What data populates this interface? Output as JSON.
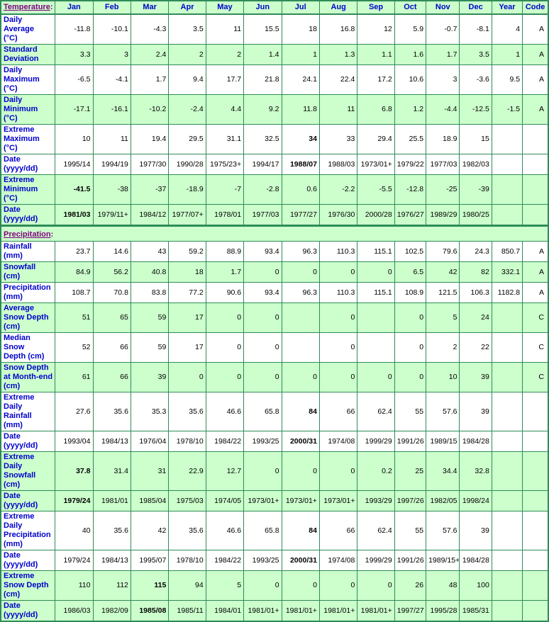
{
  "colors": {
    "cell_green": "#CCFFCC",
    "border_green": "#2E8B57",
    "label_blue": "#0000CC",
    "section_purple": "#800080",
    "value_black": "#000000"
  },
  "table": {
    "month_columns": [
      "Jan",
      "Feb",
      "Mar",
      "Apr",
      "May",
      "Jun",
      "Jul",
      "Aug",
      "Sep",
      "Oct",
      "Nov",
      "Dec"
    ],
    "extra_columns": [
      "Year",
      "Code"
    ],
    "sections": [
      {
        "title": "Temperature",
        "colon": ":",
        "rows": [
          {
            "label": "Daily Average\n(°C)",
            "green": false,
            "bold": [],
            "values": [
              "-11.8",
              "-10.1",
              "-4.3",
              "3.5",
              "11",
              "15.5",
              "18",
              "16.8",
              "12",
              "5.9",
              "-0.7",
              "-8.1"
            ],
            "year": "4",
            "code": "A"
          },
          {
            "label": "Standard\nDeviation",
            "green": true,
            "bold": [],
            "values": [
              "3.3",
              "3",
              "2.4",
              "2",
              "2",
              "1.4",
              "1",
              "1.3",
              "1.1",
              "1.6",
              "1.7",
              "3.5"
            ],
            "year": "1",
            "code": "A"
          },
          {
            "label": "Daily\nMaximum\n(°C)",
            "green": false,
            "bold": [],
            "values": [
              "-6.5",
              "-4.1",
              "1.7",
              "9.4",
              "17.7",
              "21.8",
              "24.1",
              "22.4",
              "17.2",
              "10.6",
              "3",
              "-3.6"
            ],
            "year": "9.5",
            "code": "A"
          },
          {
            "label": "Daily\nMinimum\n(°C)",
            "green": true,
            "bold": [],
            "values": [
              "-17.1",
              "-16.1",
              "-10.2",
              "-2.4",
              "4.4",
              "9.2",
              "11.8",
              "11",
              "6.8",
              "1.2",
              "-4.4",
              "-12.5"
            ],
            "year": "-1.5",
            "code": "A"
          },
          {
            "label": "Extreme\nMaximum\n(°C)",
            "green": false,
            "bold": [
              6
            ],
            "values": [
              "10",
              "11",
              "19.4",
              "29.5",
              "31.1",
              "32.5",
              "34",
              "33",
              "29.4",
              "25.5",
              "18.9",
              "15"
            ],
            "year": "",
            "code": ""
          },
          {
            "label": "Date\n(yyyy/dd)",
            "green": false,
            "bold": [
              6
            ],
            "values": [
              "1995/14",
              "1994/19",
              "1977/30",
              "1990/28",
              "1975/23+",
              "1994/17",
              "1988/07",
              "1988/03",
              "1973/01+",
              "1979/22",
              "1977/03",
              "1982/03"
            ],
            "year": "",
            "code": ""
          },
          {
            "label": "Extreme\nMinimum\n(°C)",
            "green": true,
            "bold": [
              0
            ],
            "values": [
              "-41.5",
              "-38",
              "-37",
              "-18.9",
              "-7",
              "-2.8",
              "0.6",
              "-2.2",
              "-5.5",
              "-12.8",
              "-25",
              "-39"
            ],
            "year": "",
            "code": ""
          },
          {
            "label": "Date\n(yyyy/dd)",
            "green": true,
            "bold": [
              0
            ],
            "values": [
              "1981/03",
              "1979/11+",
              "1984/12",
              "1977/07+",
              "1978/01",
              "1977/03",
              "1977/27",
              "1976/30",
              "2000/28",
              "1976/27",
              "1989/29",
              "1980/25"
            ],
            "year": "",
            "code": ""
          }
        ]
      },
      {
        "title": "Precipitation",
        "colon": ":",
        "rows": [
          {
            "label": "Rainfall (mm)",
            "green": false,
            "bold": [],
            "values": [
              "23.7",
              "14.6",
              "43",
              "59.2",
              "88.9",
              "93.4",
              "96.3",
              "110.3",
              "115.1",
              "102.5",
              "79.6",
              "24.3"
            ],
            "year": "850.7",
            "code": "A"
          },
          {
            "label": "Snowfall\n(cm)",
            "green": true,
            "bold": [],
            "values": [
              "84.9",
              "56.2",
              "40.8",
              "18",
              "1.7",
              "0",
              "0",
              "0",
              "0",
              "6.5",
              "42",
              "82"
            ],
            "year": "332.1",
            "code": "A"
          },
          {
            "label": "Precipitation\n(mm)",
            "green": false,
            "bold": [],
            "values": [
              "108.7",
              "70.8",
              "83.8",
              "77.2",
              "90.6",
              "93.4",
              "96.3",
              "110.3",
              "115.1",
              "108.9",
              "121.5",
              "106.3"
            ],
            "year": "1182.8",
            "code": "A"
          },
          {
            "label": "Average\nSnow Depth\n(cm)",
            "green": true,
            "bold": [],
            "values": [
              "51",
              "65",
              "59",
              "17",
              "0",
              "0",
              "",
              "0",
              "",
              "0",
              "5",
              "24"
            ],
            "year": "",
            "code": "C"
          },
          {
            "label": "Median Snow\nDepth (cm)",
            "green": false,
            "bold": [],
            "values": [
              "52",
              "66",
              "59",
              "17",
              "0",
              "0",
              "",
              "0",
              "",
              "0",
              "2",
              "22"
            ],
            "year": "",
            "code": "C"
          },
          {
            "label": "Snow Depth\nat Month-end\n(cm)",
            "green": true,
            "bold": [],
            "values": [
              "61",
              "66",
              "39",
              "0",
              "0",
              "0",
              "0",
              "0",
              "0",
              "0",
              "10",
              "39"
            ],
            "year": "",
            "code": "C"
          },
          {
            "label": "Extreme Daily\nRainfall (mm)",
            "green": false,
            "bold": [
              6
            ],
            "values": [
              "27.6",
              "35.6",
              "35.3",
              "35.6",
              "46.6",
              "65.8",
              "84",
              "66",
              "62.4",
              "55",
              "57.6",
              "39"
            ],
            "year": "",
            "code": ""
          },
          {
            "label": "Date\n(yyyy/dd)",
            "green": false,
            "bold": [
              6
            ],
            "values": [
              "1993/04",
              "1984/13",
              "1976/04",
              "1978/10",
              "1984/22",
              "1993/25",
              "2000/31",
              "1974/08",
              "1999/29",
              "1991/26",
              "1989/15",
              "1984/28"
            ],
            "year": "",
            "code": ""
          },
          {
            "label": "Extreme Daily\nSnowfall\n(cm)",
            "green": true,
            "bold": [
              0
            ],
            "values": [
              "37.8",
              "31.4",
              "31",
              "22.9",
              "12.7",
              "0",
              "0",
              "0",
              "0.2",
              "25",
              "34.4",
              "32.8"
            ],
            "year": "",
            "code": ""
          },
          {
            "label": "Date\n(yyyy/dd)",
            "green": true,
            "bold": [
              0
            ],
            "values": [
              "1979/24",
              "1981/01",
              "1985/04",
              "1975/03",
              "1974/05",
              "1973/01+",
              "1973/01+",
              "1973/01+",
              "1993/29",
              "1997/26",
              "1982/05",
              "1998/24"
            ],
            "year": "",
            "code": ""
          },
          {
            "label": "Extreme Daily\nPrecipitation\n(mm)",
            "green": false,
            "bold": [
              6
            ],
            "values": [
              "40",
              "35.6",
              "42",
              "35.6",
              "46.6",
              "65.8",
              "84",
              "66",
              "62.4",
              "55",
              "57.6",
              "39"
            ],
            "year": "",
            "code": ""
          },
          {
            "label": "Date\n(yyyy/dd)",
            "green": false,
            "bold": [
              6
            ],
            "values": [
              "1979/24",
              "1984/13",
              "1995/07",
              "1978/10",
              "1984/22",
              "1993/25",
              "2000/31",
              "1974/08",
              "1999/29",
              "1991/26",
              "1989/15+",
              "1984/28"
            ],
            "year": "",
            "code": ""
          },
          {
            "label": "Extreme\nSnow Depth\n(cm)",
            "green": true,
            "bold": [
              2
            ],
            "values": [
              "110",
              "112",
              "115",
              "94",
              "5",
              "0",
              "0",
              "0",
              "0",
              "26",
              "48",
              "100"
            ],
            "year": "",
            "code": ""
          },
          {
            "label": "Date\n(yyyy/dd)",
            "green": true,
            "bold": [
              2
            ],
            "values": [
              "1986/03",
              "1982/09",
              "1985/08",
              "1985/11",
              "1984/01",
              "1981/01+",
              "1981/01+",
              "1981/01+",
              "1981/01+",
              "1997/27",
              "1995/28",
              "1985/31"
            ],
            "year": "",
            "code": ""
          }
        ]
      }
    ]
  }
}
